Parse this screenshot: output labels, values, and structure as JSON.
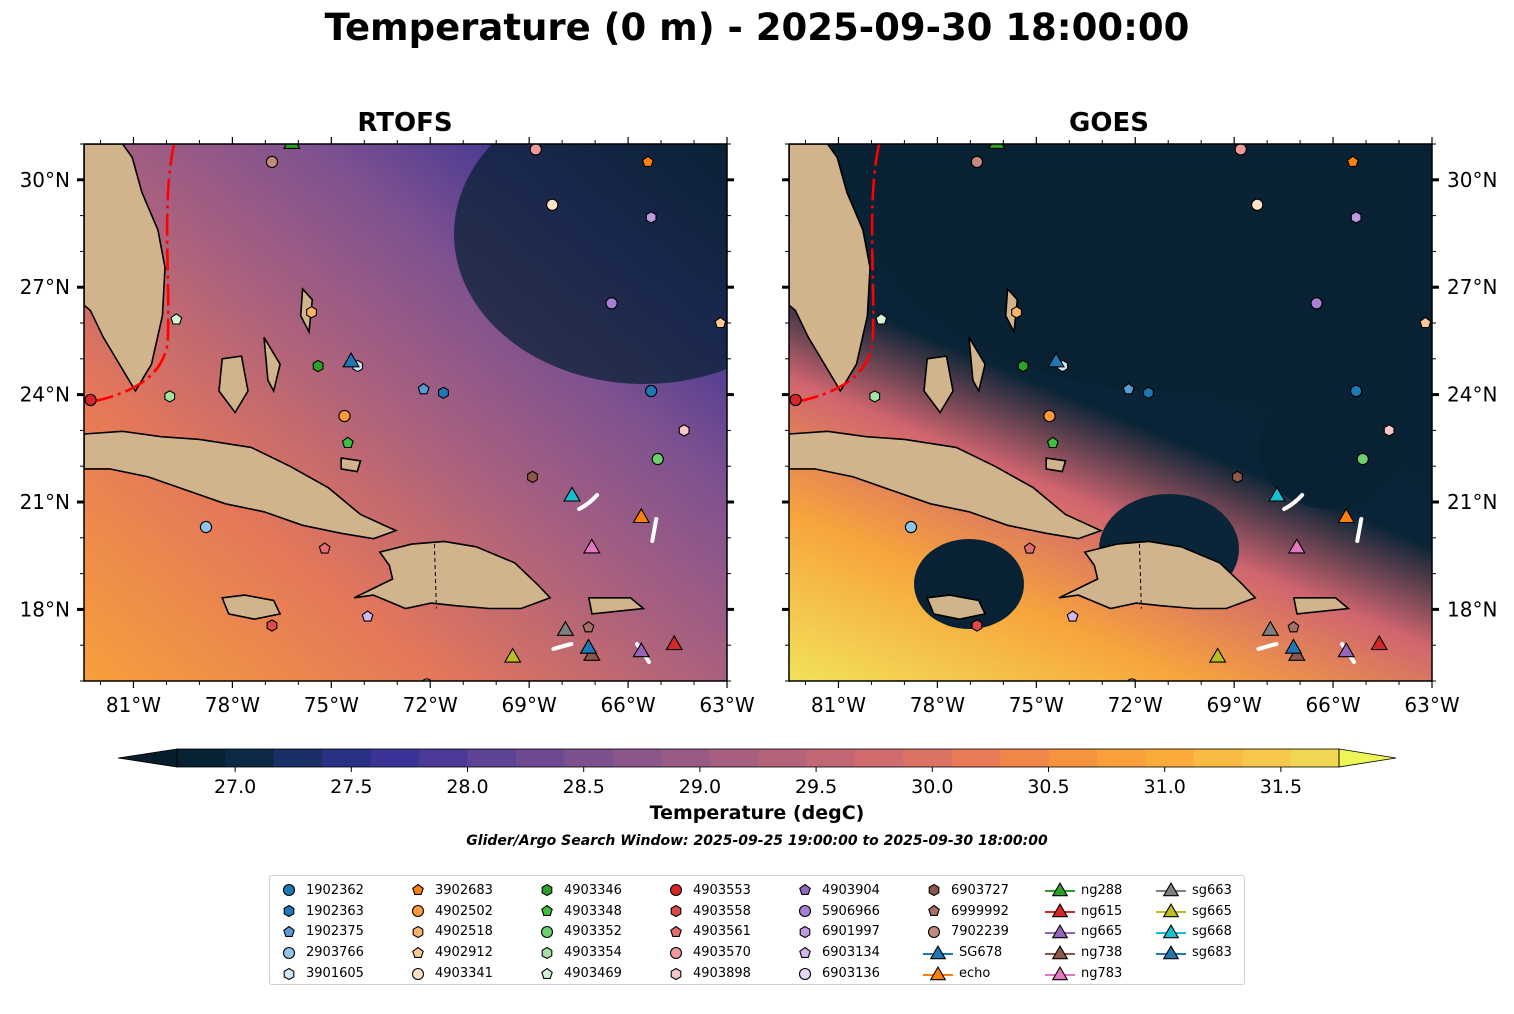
{
  "title": "Temperature (0 m) - 2025-09-30 18:00:00",
  "panels": [
    {
      "title": "RTOFS",
      "source": "model"
    },
    {
      "title": "GOES",
      "source": "satellite"
    }
  ],
  "colorbar": {
    "label": "Temperature (degC)",
    "ticks": [
      "27.0",
      "27.5",
      "28.0",
      "28.5",
      "29.0",
      "29.5",
      "30.0",
      "30.5",
      "31.0",
      "31.5"
    ],
    "tick_values": [
      27.0,
      27.5,
      28.0,
      28.5,
      29.0,
      29.5,
      30.0,
      30.5,
      31.0,
      31.5
    ],
    "vmin": 26.75,
    "vmax": 31.75,
    "extend": "both",
    "colors": [
      "#072233",
      "#0c2a45",
      "#1a2f66",
      "#2a3185",
      "#3b3496",
      "#4d3a98",
      "#5e4396",
      "#6e4a92",
      "#7d508f",
      "#8c558b",
      "#9a5a86",
      "#a85e81",
      "#b5627b",
      "#c36775",
      "#d06c6d",
      "#dc7262",
      "#e87b55",
      "#f08648",
      "#f6933e",
      "#fa9f39",
      "#fbab3a",
      "#f9ba42",
      "#f5c84b",
      "#f1d653"
    ]
  },
  "search_window": "Glider/Argo Search Window: 2025-09-25 19:00:00 to 2025-09-30 18:00:00",
  "chart_data": {
    "type": "map",
    "projection": "PlateCarree",
    "lon_range": [
      -82.5,
      -63.0
    ],
    "lat_range": [
      16.0,
      31.0
    ],
    "x_ticks": [
      "81°W",
      "78°W",
      "75°W",
      "72°W",
      "69°W",
      "66°W",
      "63°W"
    ],
    "x_tick_values": [
      -81,
      -78,
      -75,
      -72,
      -69,
      -66,
      -63
    ],
    "y_ticks": [
      "18°N",
      "21°N",
      "24°N",
      "27°N",
      "30°N"
    ],
    "y_tick_values": [
      18,
      21,
      24,
      27,
      30
    ],
    "platforms": [
      {
        "id": "1902362",
        "color": "#1f77b4",
        "marker": "circle",
        "lon": -65.3,
        "lat": 24.1
      },
      {
        "id": "1902363",
        "color": "#1f77b4",
        "marker": "hexagon",
        "lon": -71.6,
        "lat": 24.05
      },
      {
        "id": "1902375",
        "color": "#5a9bd4",
        "marker": "pentagon",
        "lon": -72.2,
        "lat": 24.15
      },
      {
        "id": "2903766",
        "color": "#8fc5ec",
        "marker": "circle",
        "lon": -78.8,
        "lat": 20.3
      },
      {
        "id": "3901605",
        "color": "#cfe6f7",
        "marker": "hexagon",
        "lon": -74.2,
        "lat": 24.8
      },
      {
        "id": "3902683",
        "color": "#ff7f0e",
        "marker": "pentagon",
        "lon": -65.4,
        "lat": 30.5
      },
      {
        "id": "4902502",
        "color": "#ff9a3c",
        "marker": "circle",
        "lon": -74.6,
        "lat": 23.4
      },
      {
        "id": "4902518",
        "color": "#ffb36b",
        "marker": "hexagon",
        "lon": -75.6,
        "lat": 26.3
      },
      {
        "id": "4902912",
        "color": "#ffc994",
        "marker": "pentagon",
        "lon": -63.2,
        "lat": 26.0
      },
      {
        "id": "4903341",
        "color": "#ffe3c4",
        "marker": "circle",
        "lon": -68.3,
        "lat": 29.3
      },
      {
        "id": "4903346",
        "color": "#2ca02c",
        "marker": "hexagon",
        "lon": -75.4,
        "lat": 24.8
      },
      {
        "id": "4903348",
        "color": "#3fbf3f",
        "marker": "pentagon",
        "lon": -74.5,
        "lat": 22.65
      },
      {
        "id": "4903352",
        "color": "#6fcf6f",
        "marker": "circle",
        "lon": -65.1,
        "lat": 22.2
      },
      {
        "id": "4903354",
        "color": "#a4e3a4",
        "marker": "hexagon",
        "lon": -79.9,
        "lat": 23.95
      },
      {
        "id": "4903469",
        "color": "#d6f5d6",
        "marker": "pentagon",
        "lon": -79.7,
        "lat": 26.1
      },
      {
        "id": "4903553",
        "color": "#d62728",
        "marker": "circle",
        "lon": -82.3,
        "lat": 23.85
      },
      {
        "id": "4903558",
        "color": "#dc4a4a",
        "marker": "hexagon",
        "lon": -76.8,
        "lat": 17.55
      },
      {
        "id": "4903561",
        "color": "#e46d6d",
        "marker": "pentagon",
        "lon": -75.2,
        "lat": 19.7
      },
      {
        "id": "4903570",
        "color": "#ee9a9a",
        "marker": "circle",
        "lon": -68.8,
        "lat": 30.85
      },
      {
        "id": "4903898",
        "color": "#f7c7c7",
        "marker": "hexagon",
        "lon": -64.3,
        "lat": 23.0
      },
      {
        "id": "4903904",
        "color": "#9467bd",
        "marker": "pentagon",
        "lon": -76.1,
        "lat": 31.1
      },
      {
        "id": "5906966",
        "color": "#a97fd3",
        "marker": "circle",
        "lon": -66.5,
        "lat": 26.55
      },
      {
        "id": "6901997",
        "color": "#bd9ae0",
        "marker": "hexagon",
        "lon": -65.3,
        "lat": 28.95
      },
      {
        "id": "6903134",
        "color": "#d2b8ec",
        "marker": "pentagon",
        "lon": -73.9,
        "lat": 17.8
      },
      {
        "id": "6903136",
        "color": "#e8d8f7",
        "marker": "circle",
        "lon": -72.1,
        "lat": 15.9
      },
      {
        "id": "6903727",
        "color": "#8c564b",
        "marker": "hexagon",
        "lon": -68.9,
        "lat": 21.7
      },
      {
        "id": "6999992",
        "color": "#a47065",
        "marker": "pentagon",
        "lon": -67.2,
        "lat": 17.5
      },
      {
        "id": "7902239",
        "color": "#c08a7e",
        "marker": "circle",
        "lon": -76.8,
        "lat": 30.5
      },
      {
        "id": "ng288",
        "color": "#2ca02c",
        "marker": "triangle",
        "lon": -76.2,
        "lat": 31.05
      },
      {
        "id": "ng615",
        "color": "#d62728",
        "marker": "triangle",
        "lon": -64.6,
        "lat": 17.05
      },
      {
        "id": "ng665",
        "color": "#9467bd",
        "marker": "triangle",
        "lon": -65.6,
        "lat": 16.85
      },
      {
        "id": "ng738",
        "color": "#8c564b",
        "marker": "triangle",
        "lon": -67.1,
        "lat": 16.75
      },
      {
        "id": "ng783",
        "color": "#e377c2",
        "marker": "triangle",
        "lon": -67.1,
        "lat": 19.75
      },
      {
        "id": "SG678",
        "color": "#1f77b4",
        "marker": "triangle",
        "lon": -74.4,
        "lat": 24.95
      },
      {
        "id": "echo",
        "color": "#ff7f0e",
        "marker": "triangle",
        "lon": -65.6,
        "lat": 20.6
      },
      {
        "id": "sg663",
        "color": "#7f7f7f",
        "marker": "triangle",
        "lon": -67.9,
        "lat": 17.45
      },
      {
        "id": "sg665",
        "color": "#bcbd22",
        "marker": "triangle",
        "lon": -69.5,
        "lat": 16.7
      },
      {
        "id": "sg668",
        "color": "#17becf",
        "marker": "triangle",
        "lon": -67.7,
        "lat": 21.2
      },
      {
        "id": "sg683",
        "color": "#1f77b4",
        "marker": "triangle",
        "lon": -67.2,
        "lat": 16.95
      }
    ]
  },
  "legend": [
    [
      "1902362",
      "1902363",
      "1902375",
      "2903766",
      "3901605"
    ],
    [
      "3902683",
      "4902502",
      "4902518",
      "4902912",
      "4903341"
    ],
    [
      "4903346",
      "4903348",
      "4903352",
      "4903354",
      "4903469"
    ],
    [
      "4903553",
      "4903558",
      "4903561",
      "4903570",
      "4903898"
    ],
    [
      "4903904",
      "5906966",
      "6901997",
      "6903134",
      "6903136"
    ],
    [
      "6903727",
      "6999992",
      "7902239",
      "SG678",
      "echo"
    ],
    [
      "ng288",
      "ng615",
      "ng665",
      "ng738",
      "ng783"
    ],
    [
      "sg663",
      "sg665",
      "sg668",
      "sg683"
    ]
  ]
}
